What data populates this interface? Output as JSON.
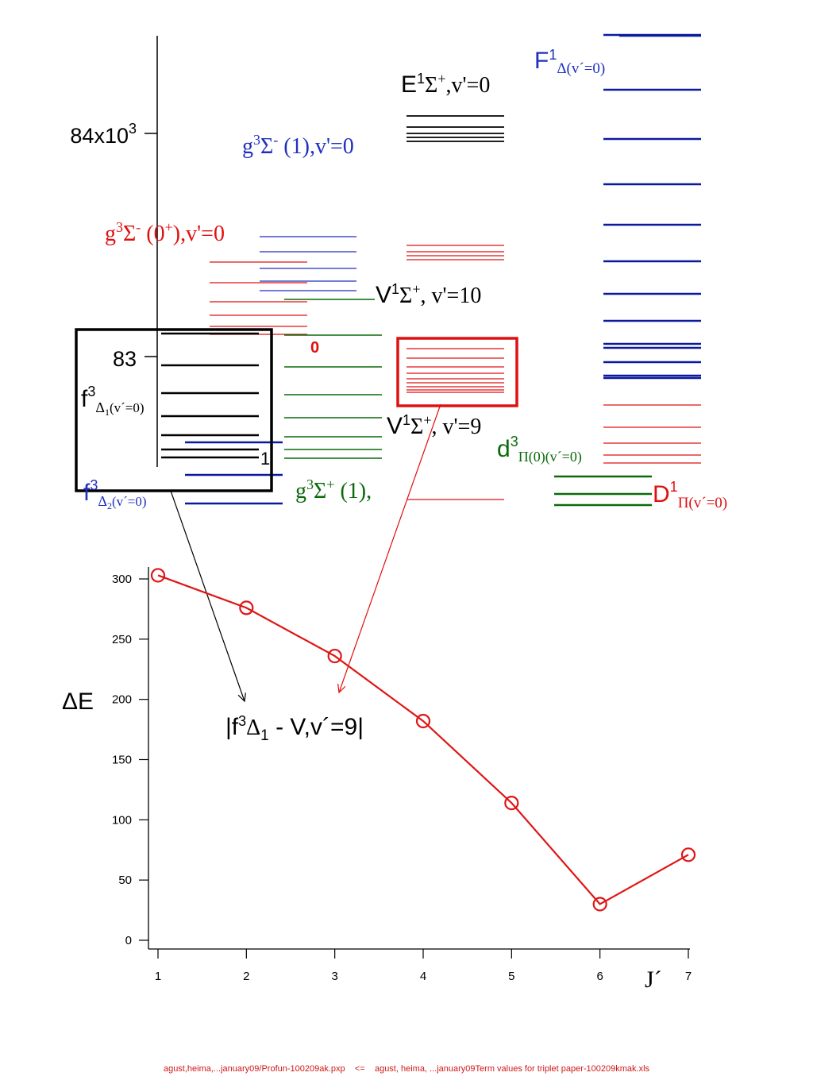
{
  "colors": {
    "black": "#000000",
    "blue": "#1f2fbf",
    "blue_strong": "#0a1a9e",
    "red": "#e01010",
    "green": "#0a6a0a",
    "plot_red": "#e01515"
  },
  "top_panel": {
    "y_tick_labels": [
      {
        "base": "84x10",
        "exp": "3"
      },
      {
        "base": "83",
        "exp": ""
      }
    ],
    "states": [
      {
        "id": "E1S",
        "base": "E",
        "sup": "1",
        "mid": "Σ",
        "sup2": "+",
        "tail": ",v'=0",
        "color_key": "black"
      },
      {
        "id": "F1D",
        "base": "F",
        "sup": "1",
        "sub": "Δ(v´=0)",
        "color_key": "blue"
      },
      {
        "id": "g3Sm1",
        "base": "g",
        "sup": "3",
        "mid": "Σ",
        "sup2": "-",
        "tail": " (1),v'=0",
        "color_key": "blue"
      },
      {
        "id": "g3Sm0",
        "base": "g",
        "sup": "3",
        "mid": "Σ",
        "sup2": "-",
        "tail": " (0",
        "sup3": "+",
        "tail2": "),v'=0",
        "color_key": "red"
      },
      {
        "id": "V10",
        "base": "V",
        "sup": "1",
        "mid": "Σ",
        "sup2": "+",
        "tail": ", v'=10",
        "color_key": "black"
      },
      {
        "id": "V9",
        "base": "V",
        "sup": "1",
        "mid": "Σ",
        "sup2": "+",
        "tail": ", v'=9",
        "color_key": "black"
      },
      {
        "id": "f3D1",
        "base": "f",
        "sup": "3",
        "sub": "Δ",
        "subsub": "1",
        "sub_tail": "(v´=0)",
        "color_key": "black"
      },
      {
        "id": "f3D2",
        "base": "f",
        "sup": "3",
        "sub": "Δ",
        "subsub": "2",
        "sub_tail": "(v´=0)",
        "color_key": "blue"
      },
      {
        "id": "d3P",
        "base": "d",
        "sup": "3",
        "sub": "Π(0)(v´=0)",
        "color_key": "green"
      },
      {
        "id": "g3Sp",
        "base": "g",
        "sup": "3",
        "mid": "Σ",
        "sup2": "+",
        "tail": " (1),",
        "color_key": "green"
      },
      {
        "id": "D1P",
        "base": "D",
        "sup": "1",
        "sub": "Π(v´=0)",
        "color_key": "red"
      }
    ],
    "j_markers": [
      "0",
      "1"
    ]
  },
  "chart_data": {
    "type": "line",
    "x": [
      1,
      2,
      3,
      4,
      5,
      6,
      7
    ],
    "series": [
      {
        "values": [
          303,
          276,
          236,
          182,
          114,
          30,
          71
        ],
        "color_key": "plot_red",
        "marker": "open-circle"
      }
    ],
    "ylim": [
      0,
      310
    ],
    "xlim": [
      1,
      7
    ],
    "y_ticks": [
      0,
      50,
      100,
      150,
      200,
      250,
      300
    ],
    "x_ticks": [
      1,
      2,
      3,
      4,
      5,
      6,
      7
    ],
    "ylabel": "ΔE",
    "xlabel": "J´",
    "annotation": {
      "prefix": "|f",
      "sup": "3",
      "delta": "Δ",
      "sub": "1",
      "tail": " - V,v´=9|"
    }
  },
  "footer": "agust,heima,...january09/Profun-100209ak.pxp    <=    agust, heima, ...january09Term values for triplet paper-100209kmak.xls"
}
